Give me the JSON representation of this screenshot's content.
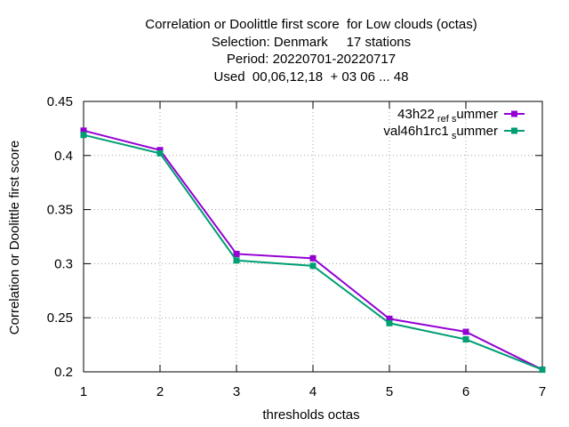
{
  "chart_data": {
    "type": "line",
    "title_lines": [
      "Correlation or Doolittle first score  for Low clouds (octas)",
      "Selection: Denmark     17 stations",
      "Period: 20220701-20220717",
      "Used  00,06,12,18  + 03 06 ... 48"
    ],
    "xlabel": "thresholds octas",
    "ylabel": "Correlation or Doolittle first score",
    "x": [
      1,
      2,
      3,
      4,
      5,
      6,
      7
    ],
    "xlim": [
      1,
      7
    ],
    "ylim": [
      0.2,
      0.45
    ],
    "xticks": [
      "1",
      "2",
      "3",
      "4",
      "5",
      "6",
      "7"
    ],
    "yticks": [
      "0.2",
      "0.25",
      "0.3",
      "0.35",
      "0.4",
      "0.45"
    ],
    "grid": true,
    "legend_position": "top-right",
    "series": [
      {
        "name": "43h22_ref_summer",
        "legend_parts": [
          "43h22",
          "ref",
          "s",
          "ummer"
        ],
        "color": "#9400d3",
        "values": [
          0.423,
          0.405,
          0.309,
          0.305,
          0.249,
          0.237,
          0.202
        ]
      },
      {
        "name": "val46h1rc1_summer",
        "legend_parts": [
          "val46h1rc1",
          "s",
          "ummer"
        ],
        "color": "#009e73",
        "values": [
          0.419,
          0.402,
          0.303,
          0.298,
          0.245,
          0.23,
          0.202
        ]
      }
    ]
  }
}
